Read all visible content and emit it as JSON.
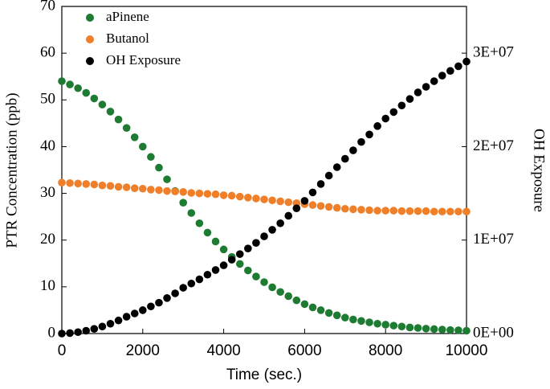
{
  "chart_data": {
    "type": "scatter",
    "xlabel": "Time (sec.)",
    "ylabel": "PTR Concentration (ppb)",
    "y2label": "OH Exposure",
    "x": [
      0,
      200,
      400,
      600,
      800,
      1000,
      1200,
      1400,
      1600,
      1800,
      2000,
      2200,
      2400,
      2600,
      2800,
      3000,
      3200,
      3400,
      3600,
      3800,
      4000,
      4200,
      4400,
      4600,
      4800,
      5000,
      5200,
      5400,
      5600,
      5800,
      6000,
      6200,
      6400,
      6600,
      6800,
      7000,
      7200,
      7400,
      7600,
      7800,
      8000,
      8200,
      8400,
      8600,
      8800,
      9000,
      9200,
      9400,
      9600,
      9800,
      10000
    ],
    "series": [
      {
        "name": "aPinene",
        "color": "#1e7b32",
        "values": [
          54,
          53.3,
          52.5,
          51.5,
          50.3,
          49,
          47.5,
          45.8,
          44,
          42,
          40,
          37.8,
          35.5,
          33,
          30.5,
          28,
          25.8,
          23.6,
          21.6,
          19.7,
          18,
          16.4,
          14.9,
          13.5,
          12.2,
          11,
          9.9,
          8.9,
          8,
          7.1,
          6.3,
          5.6,
          5,
          4.4,
          3.9,
          3.4,
          3,
          2.7,
          2.4,
          2.1,
          1.9,
          1.7,
          1.5,
          1.3,
          1.2,
          1.05,
          0.95,
          0.85,
          0.75,
          0.7,
          0.6
        ]
      },
      {
        "name": "Butanol",
        "color": "#f07f2a",
        "values": [
          32.3,
          32.2,
          32.1,
          32,
          31.9,
          31.7,
          31.6,
          31.4,
          31.3,
          31.1,
          31,
          30.8,
          30.7,
          30.5,
          30.4,
          30.3,
          30.1,
          30,
          29.9,
          29.8,
          29.6,
          29.5,
          29.3,
          29.1,
          28.9,
          28.7,
          28.5,
          28.3,
          28.1,
          27.9,
          27.7,
          27.5,
          27.3,
          27.1,
          26.9,
          26.7,
          26.6,
          26.5,
          26.4,
          26.3,
          26.3,
          26.3,
          26.2,
          26.2,
          26.2,
          26.2,
          26.1,
          26.1,
          26.1,
          26.1,
          26.1
        ]
      },
      {
        "name": "OH Exposure",
        "color": "#000000",
        "axis": "y2",
        "values": [
          0,
          50000.0,
          150000.0,
          300000.0,
          500000.0,
          750000.0,
          1050000.0,
          1400000.0,
          1800000.0,
          2150000.0,
          2500000.0,
          2900000.0,
          3300000.0,
          3800000.0,
          4300000.0,
          4900000.0,
          5350000.0,
          5800000.0,
          6300000.0,
          6800000.0,
          7300000.0,
          7900000.0,
          8500000.0,
          9100000.0,
          9700000.0,
          10400000.0,
          11100000.0,
          11800000.0,
          12600000.0,
          13400000.0,
          14200000.0,
          15100000.0,
          16000000.0,
          16900000.0,
          17800000.0,
          18700000.0,
          19600000.0,
          20500000.0,
          21300000.0,
          22200000.0,
          23000000.0,
          23700000.0,
          24400000.0,
          25100000.0,
          25800000.0,
          26400000.0,
          27000000.0,
          27600000.0,
          28100000.0,
          28600000.0,
          29100000.0
        ]
      }
    ],
    "xlim": [
      0,
      10000
    ],
    "xticks": [
      0,
      2000,
      4000,
      6000,
      8000,
      10000
    ],
    "ylim": [
      0,
      70
    ],
    "yticks": [
      0,
      10,
      20,
      30,
      40,
      50,
      60,
      70
    ],
    "y2lim": [
      0,
      35000000
    ],
    "y2ticks": [
      {
        "value": 0,
        "label": "0E+00"
      },
      {
        "value": 10000000,
        "label": "1E+07"
      },
      {
        "value": 20000000,
        "label": "2E+07"
      },
      {
        "value": 30000000,
        "label": "3E+07"
      }
    ],
    "legend": "upper left"
  }
}
